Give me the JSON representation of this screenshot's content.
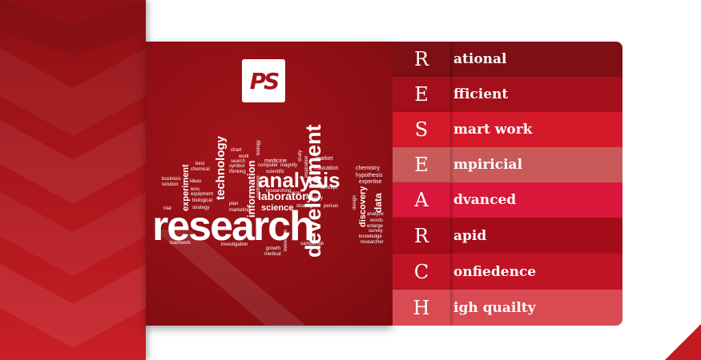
{
  "logo": {
    "text": "PS"
  },
  "word_cloud": {
    "main": "research",
    "words": [
      "development",
      "analysis",
      "technology",
      "laboratory",
      "information",
      "science",
      "experiment",
      "data",
      "discovery",
      "chemistry",
      "hypothesis",
      "expertise",
      "medicine",
      "education",
      "market",
      "scientific",
      "computer",
      "magnify",
      "researching",
      "icon",
      "concept",
      "industry",
      "sharing",
      "person",
      "analyze",
      "words",
      "enlarge",
      "survey",
      "knowledge",
      "researcher",
      "investigation",
      "teamwork",
      "growth",
      "medical",
      "sample lab",
      "business",
      "solution",
      "ideas",
      "chemical",
      "equipment",
      "lens",
      "biological",
      "strategy",
      "best",
      "chart",
      "work",
      "search",
      "symbol",
      "thinking",
      "plan",
      "marketing",
      "trial",
      "innovation",
      "inspiration",
      "study",
      "customers",
      "biology",
      "design"
    ]
  },
  "acronym": [
    {
      "letter": "R",
      "rest": "ational",
      "color": "#7e0f14"
    },
    {
      "letter": "E",
      "rest": "fficient",
      "color": "#a3101c"
    },
    {
      "letter": "S",
      "rest": "mart work",
      "color": "#d41a2a"
    },
    {
      "letter": "E",
      "rest": "mpiricial",
      "color": "#c95a5a"
    },
    {
      "letter": "A",
      "rest": "dvanced",
      "color": "#d8173a"
    },
    {
      "letter": "R",
      "rest": "apid",
      "color": "#a50c1a"
    },
    {
      "letter": "C",
      "rest": "onfiedence",
      "color": "#c01425"
    },
    {
      "letter": "H",
      "rest": "igh quailty",
      "color": "#d94a52"
    }
  ]
}
